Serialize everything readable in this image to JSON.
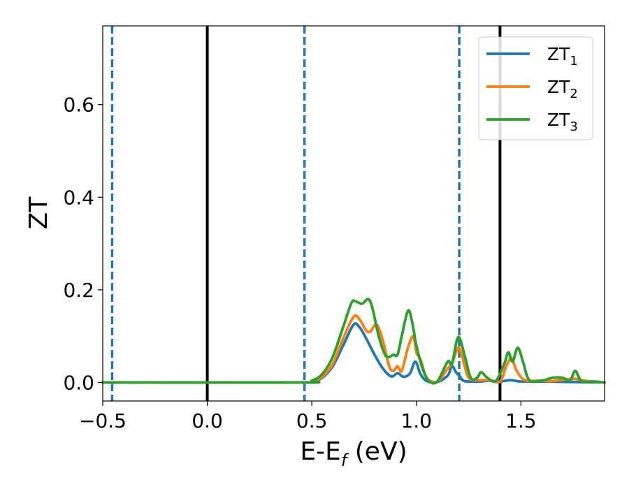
{
  "chart_data": {
    "type": "line",
    "xlabel": "E-E",
    "xlabel_sub": "f",
    "xlabel_unit": " (eV)",
    "ylabel": "ZT",
    "xlim": [
      -0.5,
      1.9
    ],
    "ylim": [
      -0.04,
      0.77
    ],
    "x_ticks": [
      -0.5,
      0.0,
      0.5,
      1.0,
      1.5
    ],
    "x_tick_labels": [
      "−0.5",
      "0.0",
      "0.5",
      "1.0",
      "1.5"
    ],
    "y_ticks": [
      0.0,
      0.2,
      0.4,
      0.6
    ],
    "y_tick_labels": [
      "0.0",
      "0.2",
      "0.4",
      "0.6"
    ],
    "grid": false,
    "legend_position": "top-right",
    "vertical_lines": [
      {
        "x": -0.455,
        "style": "dashed",
        "color": "#1f77b4"
      },
      {
        "x": 0.0,
        "style": "solid",
        "color": "#000000"
      },
      {
        "x": 0.465,
        "style": "dashed",
        "color": "#1f77b4"
      },
      {
        "x": 1.205,
        "style": "dashed",
        "color": "#1f77b4"
      },
      {
        "x": 1.4,
        "style": "solid",
        "color": "#000000"
      }
    ],
    "series": [
      {
        "name": "ZT",
        "subscript": "1",
        "color": "#1f77b4",
        "points": [
          [
            -0.5,
            0
          ],
          [
            0.45,
            0
          ],
          [
            0.5,
            0.002
          ],
          [
            0.55,
            0.01
          ],
          [
            0.6,
            0.035
          ],
          [
            0.65,
            0.08
          ],
          [
            0.7,
            0.125
          ],
          [
            0.73,
            0.118
          ],
          [
            0.76,
            0.095
          ],
          [
            0.8,
            0.06
          ],
          [
            0.84,
            0.03
          ],
          [
            0.88,
            0.013
          ],
          [
            0.91,
            0.02
          ],
          [
            0.94,
            0.012
          ],
          [
            0.97,
            0.02
          ],
          [
            0.995,
            0.045
          ],
          [
            1.02,
            0.018
          ],
          [
            1.05,
            0.003
          ],
          [
            1.1,
            0.001
          ],
          [
            1.15,
            0.015
          ],
          [
            1.17,
            0.035
          ],
          [
            1.19,
            0.022
          ],
          [
            1.21,
            0.012
          ],
          [
            1.23,
            0.003
          ],
          [
            1.3,
            0.002
          ],
          [
            1.35,
            0.004
          ],
          [
            1.4,
            0.002
          ],
          [
            1.45,
            0.005
          ],
          [
            1.5,
            0.002
          ],
          [
            1.6,
            0.002
          ],
          [
            1.75,
            0.001
          ],
          [
            1.9,
            0.0
          ]
        ]
      },
      {
        "name": "ZT",
        "subscript": "2",
        "color": "#ff7f0e",
        "points": [
          [
            -0.5,
            0
          ],
          [
            0.45,
            0
          ],
          [
            0.5,
            0.003
          ],
          [
            0.55,
            0.012
          ],
          [
            0.6,
            0.04
          ],
          [
            0.65,
            0.095
          ],
          [
            0.7,
            0.142
          ],
          [
            0.73,
            0.135
          ],
          [
            0.76,
            0.112
          ],
          [
            0.78,
            0.11
          ],
          [
            0.81,
            0.125
          ],
          [
            0.84,
            0.09
          ],
          [
            0.87,
            0.035
          ],
          [
            0.89,
            0.025
          ],
          [
            0.91,
            0.035
          ],
          [
            0.93,
            0.025
          ],
          [
            0.96,
            0.075
          ],
          [
            0.985,
            0.1
          ],
          [
            1.0,
            0.065
          ],
          [
            1.02,
            0.05
          ],
          [
            1.05,
            0.01
          ],
          [
            1.1,
            0.002
          ],
          [
            1.15,
            0.03
          ],
          [
            1.17,
            0.04
          ],
          [
            1.2,
            0.075
          ],
          [
            1.22,
            0.055
          ],
          [
            1.25,
            0.01
          ],
          [
            1.3,
            0.005
          ],
          [
            1.35,
            0.005
          ],
          [
            1.4,
            0.002
          ],
          [
            1.43,
            0.035
          ],
          [
            1.455,
            0.052
          ],
          [
            1.48,
            0.025
          ],
          [
            1.52,
            0.005
          ],
          [
            1.6,
            0.004
          ],
          [
            1.65,
            0.003
          ],
          [
            1.75,
            0.008
          ],
          [
            1.8,
            0.004
          ],
          [
            1.9,
            0.0
          ]
        ]
      },
      {
        "name": "ZT",
        "subscript": "3",
        "color": "#2ca02c",
        "points": [
          [
            -0.5,
            0
          ],
          [
            0.45,
            0
          ],
          [
            0.5,
            0.004
          ],
          [
            0.55,
            0.018
          ],
          [
            0.6,
            0.055
          ],
          [
            0.65,
            0.12
          ],
          [
            0.69,
            0.172
          ],
          [
            0.71,
            0.175
          ],
          [
            0.74,
            0.17
          ],
          [
            0.77,
            0.18
          ],
          [
            0.79,
            0.16
          ],
          [
            0.82,
            0.1
          ],
          [
            0.85,
            0.06
          ],
          [
            0.87,
            0.055
          ],
          [
            0.89,
            0.06
          ],
          [
            0.91,
            0.06
          ],
          [
            0.93,
            0.1
          ],
          [
            0.96,
            0.155
          ],
          [
            0.98,
            0.13
          ],
          [
            1.0,
            0.08
          ],
          [
            1.03,
            0.03
          ],
          [
            1.06,
            0.003
          ],
          [
            1.1,
            0.002
          ],
          [
            1.15,
            0.045
          ],
          [
            1.17,
            0.04
          ],
          [
            1.2,
            0.098
          ],
          [
            1.23,
            0.06
          ],
          [
            1.26,
            0.01
          ],
          [
            1.29,
            0.01
          ],
          [
            1.31,
            0.022
          ],
          [
            1.34,
            0.01
          ],
          [
            1.38,
            0.003
          ],
          [
            1.42,
            0.04
          ],
          [
            1.44,
            0.065
          ],
          [
            1.46,
            0.045
          ],
          [
            1.485,
            0.075
          ],
          [
            1.51,
            0.045
          ],
          [
            1.54,
            0.005
          ],
          [
            1.6,
            0.004
          ],
          [
            1.65,
            0.01
          ],
          [
            1.7,
            0.01
          ],
          [
            1.735,
            0.004
          ],
          [
            1.76,
            0.025
          ],
          [
            1.79,
            0.003
          ],
          [
            1.85,
            0.002
          ],
          [
            1.9,
            0.0
          ]
        ]
      }
    ]
  }
}
